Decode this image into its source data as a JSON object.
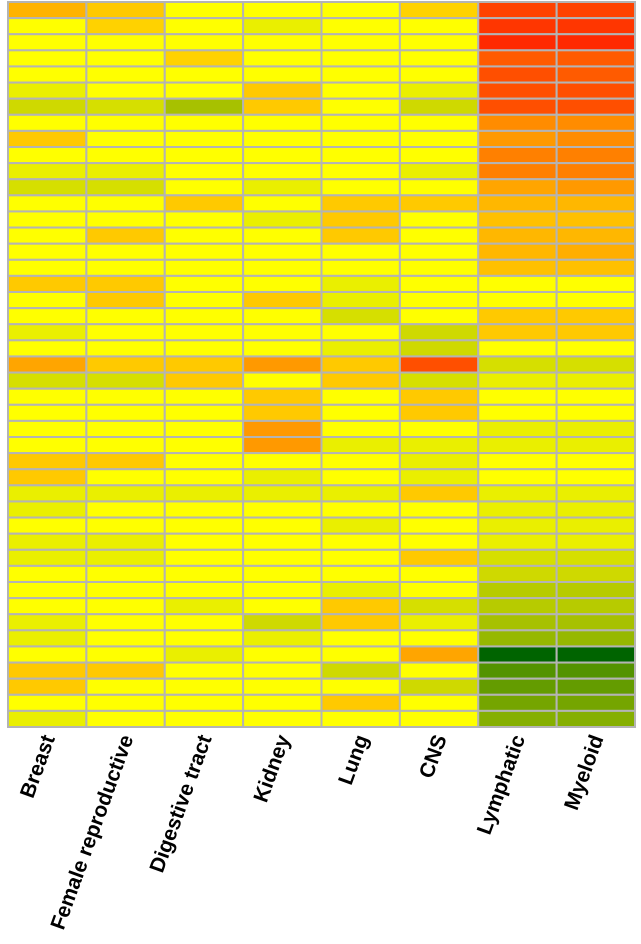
{
  "chart_data": {
    "type": "heatmap",
    "x_labels": [
      "Breast",
      "Female reproductive",
      "Digestive tract",
      "Kidney",
      "Lung",
      "CNS",
      "Lymphatic",
      "Myeloid"
    ],
    "color_scale": {
      "low": "#006400",
      "mid_low": "#c8d400",
      "mid": "#ffff00",
      "mid_high": "#ffa500",
      "high": "#ff2a00"
    },
    "values": [
      [
        0.42,
        0.3,
        0.0,
        0.0,
        0.0,
        0.25,
        0.9,
        0.9
      ],
      [
        0.0,
        0.25,
        0.0,
        -0.15,
        0.0,
        0.0,
        0.95,
        0.95
      ],
      [
        0.0,
        0.0,
        0.0,
        0.0,
        0.0,
        0.0,
        1.0,
        1.0
      ],
      [
        0.0,
        0.0,
        0.25,
        0.0,
        0.0,
        0.0,
        0.8,
        0.8
      ],
      [
        0.0,
        0.0,
        0.0,
        0.0,
        0.0,
        0.0,
        0.85,
        0.8
      ],
      [
        -0.15,
        0.0,
        0.0,
        0.3,
        0.0,
        -0.15,
        0.85,
        0.85
      ],
      [
        -0.35,
        -0.3,
        -0.5,
        0.3,
        0.0,
        -0.35,
        0.85,
        0.85
      ],
      [
        0.0,
        0.0,
        0.0,
        0.0,
        0.0,
        0.0,
        0.6,
        0.6
      ],
      [
        0.3,
        0.0,
        0.0,
        0.0,
        0.0,
        0.0,
        0.55,
        0.6
      ],
      [
        0.0,
        0.0,
        0.0,
        0.0,
        0.0,
        0.0,
        0.65,
        0.65
      ],
      [
        -0.15,
        -0.15,
        0.0,
        0.0,
        0.0,
        -0.15,
        0.65,
        0.65
      ],
      [
        -0.3,
        -0.3,
        0.0,
        -0.15,
        0.0,
        0.0,
        0.5,
        0.55
      ],
      [
        0.0,
        0.0,
        0.3,
        0.0,
        0.3,
        0.3,
        0.4,
        0.4
      ],
      [
        0.0,
        0.0,
        0.0,
        -0.15,
        0.3,
        0.0,
        0.35,
        0.35
      ],
      [
        0.0,
        0.3,
        0.0,
        0.0,
        0.3,
        0.0,
        0.4,
        0.4
      ],
      [
        0.0,
        0.0,
        0.0,
        0.0,
        0.0,
        0.0,
        0.4,
        0.45
      ],
      [
        0.0,
        0.0,
        0.0,
        0.0,
        0.0,
        0.0,
        0.35,
        0.35
      ],
      [
        0.3,
        0.3,
        0.0,
        0.0,
        -0.15,
        0.0,
        0.0,
        0.0
      ],
      [
        0.0,
        0.3,
        0.0,
        0.3,
        -0.15,
        0.0,
        0.0,
        0.0
      ],
      [
        0.0,
        0.0,
        0.0,
        0.0,
        -0.3,
        0.0,
        0.3,
        0.3
      ],
      [
        -0.15,
        0.0,
        0.0,
        0.0,
        0.0,
        -0.35,
        0.3,
        0.3
      ],
      [
        0.0,
        0.0,
        0.0,
        0.0,
        -0.15,
        -0.35,
        0.0,
        0.0
      ],
      [
        0.5,
        0.3,
        0.3,
        0.55,
        0.3,
        0.85,
        -0.3,
        -0.3
      ],
      [
        -0.3,
        -0.3,
        0.3,
        0.0,
        0.3,
        -0.3,
        -0.15,
        -0.15
      ],
      [
        0.0,
        0.0,
        0.0,
        0.3,
        0.0,
        0.3,
        0.0,
        0.0
      ],
      [
        0.0,
        0.0,
        0.0,
        0.3,
        0.0,
        0.3,
        0.0,
        0.0
      ],
      [
        0.0,
        0.0,
        0.0,
        0.55,
        0.0,
        0.0,
        -0.15,
        -0.15
      ],
      [
        0.0,
        0.0,
        0.0,
        0.55,
        -0.15,
        -0.15,
        -0.15,
        -0.15
      ],
      [
        0.3,
        0.3,
        0.0,
        0.0,
        0.0,
        -0.15,
        0.0,
        0.0
      ],
      [
        0.3,
        0.0,
        0.0,
        -0.15,
        0.0,
        -0.15,
        0.0,
        0.0
      ],
      [
        -0.15,
        -0.15,
        -0.15,
        -0.15,
        -0.15,
        0.3,
        -0.15,
        -0.15
      ],
      [
        -0.15,
        0.0,
        0.0,
        0.0,
        0.0,
        0.0,
        -0.15,
        -0.15
      ],
      [
        0.0,
        0.0,
        0.0,
        0.0,
        -0.15,
        0.0,
        -0.15,
        -0.15
      ],
      [
        -0.15,
        -0.15,
        0.0,
        0.0,
        0.0,
        0.0,
        -0.15,
        -0.15
      ],
      [
        -0.15,
        -0.15,
        0.0,
        0.0,
        0.0,
        0.3,
        -0.3,
        -0.3
      ],
      [
        0.0,
        0.0,
        0.0,
        0.0,
        0.0,
        0.0,
        -0.35,
        -0.35
      ],
      [
        0.0,
        0.0,
        0.0,
        0.0,
        -0.15,
        0.0,
        -0.45,
        -0.45
      ],
      [
        0.0,
        0.0,
        -0.15,
        0.0,
        0.3,
        -0.3,
        -0.45,
        -0.45
      ],
      [
        -0.15,
        0.0,
        0.0,
        -0.35,
        0.3,
        -0.15,
        -0.5,
        -0.5
      ],
      [
        -0.15,
        0.0,
        0.0,
        -0.15,
        0.0,
        0.0,
        -0.55,
        -0.55
      ],
      [
        0.0,
        0.0,
        -0.15,
        0.0,
        0.0,
        0.5,
        -1.0,
        -1.0
      ],
      [
        0.3,
        0.3,
        0.0,
        0.0,
        -0.35,
        0.0,
        -0.75,
        -0.75
      ],
      [
        0.3,
        0.0,
        0.0,
        0.0,
        0.0,
        -0.35,
        -0.7,
        -0.7
      ],
      [
        0.0,
        0.0,
        0.0,
        0.0,
        0.3,
        0.0,
        -0.65,
        -0.65
      ],
      [
        -0.15,
        0.0,
        0.0,
        0.0,
        0.0,
        0.0,
        -0.6,
        -0.6
      ]
    ]
  }
}
